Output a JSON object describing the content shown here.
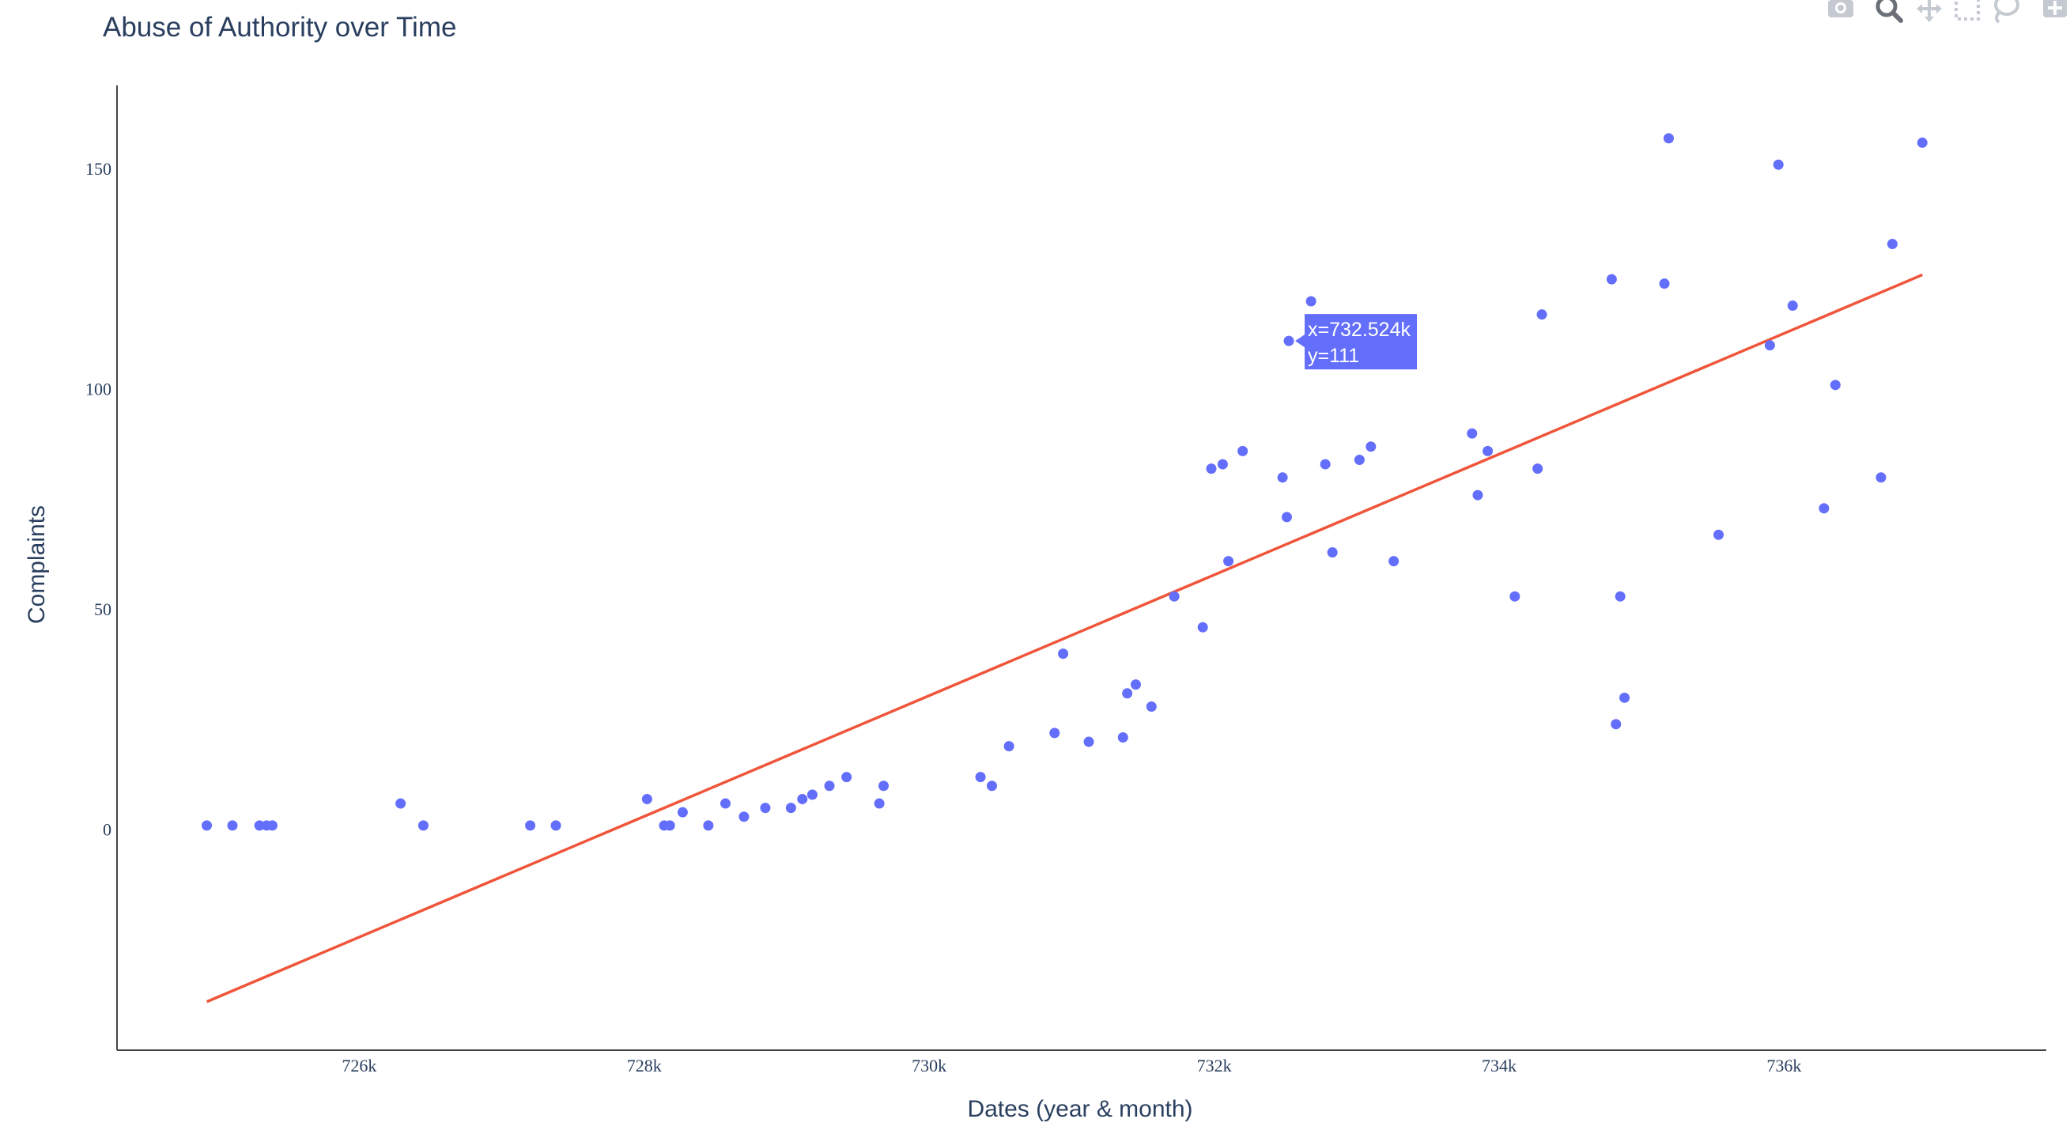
{
  "modebar": {
    "buttons": [
      "camera-icon",
      "zoom-icon",
      "pan-icon",
      "box-select-icon",
      "lasso-select-icon",
      "zoom-in-icon"
    ]
  },
  "chart_data": {
    "type": "scatter",
    "title": "Abuse of Authority over Time",
    "xlabel": "Dates (year & month)",
    "ylabel": "Complaints",
    "xlim": [
      724300,
      737840
    ],
    "ylim": [
      -50,
      169
    ],
    "x_ticks": [
      726000,
      728000,
      730000,
      732000,
      734000,
      736000
    ],
    "x_tick_labels": [
      "726k",
      "728k",
      "730k",
      "732k",
      "734k",
      "736k"
    ],
    "y_ticks": [
      0,
      50,
      100,
      150
    ],
    "y_tick_labels": [
      "0",
      "50",
      "100",
      "150"
    ],
    "grid": false,
    "colors": {
      "points": "#636efa",
      "trend": "#ef553b",
      "text": "#2a3f5f",
      "axis": "#444444"
    },
    "series": [
      {
        "type": "scatter",
        "points": [
          [
            724930,
            1
          ],
          [
            725110,
            1
          ],
          [
            725300,
            1
          ],
          [
            725350,
            1
          ],
          [
            725390,
            1
          ],
          [
            726290,
            6
          ],
          [
            726450,
            1
          ],
          [
            727200,
            1
          ],
          [
            727380,
            1
          ],
          [
            728020,
            7
          ],
          [
            728140,
            1
          ],
          [
            728180,
            1
          ],
          [
            728270,
            4
          ],
          [
            728450,
            1
          ],
          [
            728570,
            6
          ],
          [
            728700,
            3
          ],
          [
            728850,
            5
          ],
          [
            729030,
            5
          ],
          [
            729110,
            7
          ],
          [
            729180,
            8
          ],
          [
            729300,
            10
          ],
          [
            729420,
            12
          ],
          [
            729650,
            6
          ],
          [
            729680,
            10
          ],
          [
            730360,
            12
          ],
          [
            730440,
            10
          ],
          [
            730560,
            19
          ],
          [
            730880,
            22
          ],
          [
            730940,
            40
          ],
          [
            731120,
            20
          ],
          [
            731360,
            21
          ],
          [
            731390,
            31
          ],
          [
            731450,
            33
          ],
          [
            731560,
            28
          ],
          [
            731720,
            53
          ],
          [
            731920,
            46
          ],
          [
            731980,
            82
          ],
          [
            732060,
            83
          ],
          [
            732100,
            61
          ],
          [
            732200,
            86
          ],
          [
            732480,
            80
          ],
          [
            732510,
            71
          ],
          [
            732524,
            111
          ],
          [
            732680,
            120
          ],
          [
            732780,
            83
          ],
          [
            732830,
            63
          ],
          [
            733020,
            84
          ],
          [
            733100,
            87
          ],
          [
            733260,
            61
          ],
          [
            733810,
            90
          ],
          [
            733850,
            76
          ],
          [
            733920,
            86
          ],
          [
            734110,
            53
          ],
          [
            734270,
            82
          ],
          [
            734300,
            117
          ],
          [
            734790,
            125
          ],
          [
            734820,
            24
          ],
          [
            734850,
            53
          ],
          [
            734880,
            30
          ],
          [
            735160,
            124
          ],
          [
            735190,
            157
          ],
          [
            735540,
            67
          ],
          [
            735900,
            110
          ],
          [
            735960,
            151
          ],
          [
            736060,
            119
          ],
          [
            736280,
            73
          ],
          [
            736360,
            101
          ],
          [
            736680,
            80
          ],
          [
            736760,
            133
          ],
          [
            736970,
            156
          ]
        ]
      },
      {
        "type": "line",
        "points": [
          [
            724930,
            -39
          ],
          [
            736970,
            126
          ]
        ]
      }
    ],
    "hover": {
      "x": 732524,
      "y": 111,
      "text_x": "x=732.524k",
      "text_y": "y=111"
    }
  }
}
